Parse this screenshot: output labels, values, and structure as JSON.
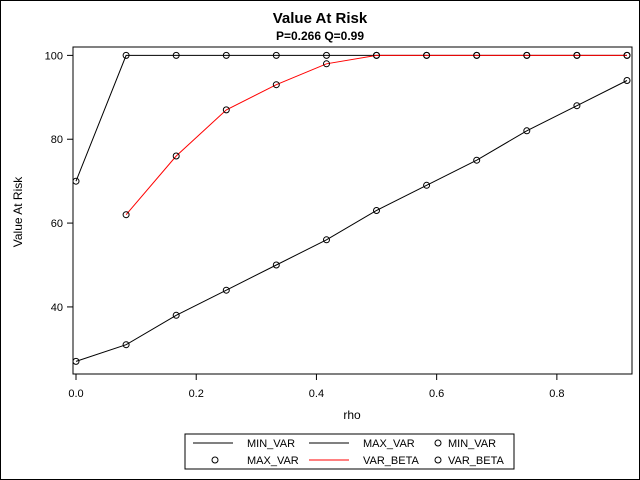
{
  "chart_data": {
    "type": "line",
    "title": "Value At Risk",
    "subtitle": "P=0.266 Q=0.99",
    "xlabel": "rho",
    "ylabel": "Value At Risk",
    "x_ticks": [
      "0.0",
      "0.2",
      "0.4",
      "0.6",
      "0.8"
    ],
    "x_tick_values": [
      0.0,
      0.2,
      0.4,
      0.6,
      0.8
    ],
    "y_ticks": [
      "40",
      "60",
      "80",
      "100"
    ],
    "y_tick_values": [
      40,
      60,
      80,
      100
    ],
    "xlim": [
      -0.005,
      0.925
    ],
    "ylim": [
      24,
      102
    ],
    "grid": false,
    "legend_position": "bottom",
    "series": [
      {
        "name": "MIN_VAR",
        "color": "#000000",
        "line": true,
        "markers": true,
        "x": [
          0.0,
          0.0833,
          0.1667,
          0.25,
          0.3333,
          0.4167,
          0.5,
          0.5833,
          0.6667,
          0.75,
          0.8333,
          0.9167
        ],
        "y": [
          27,
          31,
          38,
          44,
          50,
          56,
          63,
          69,
          75,
          82,
          88,
          94
        ]
      },
      {
        "name": "MAX_VAR",
        "color": "#000000",
        "line": true,
        "markers": true,
        "x": [
          0.0,
          0.0833,
          0.1667,
          0.25,
          0.3333,
          0.4167,
          0.5,
          0.5833,
          0.6667,
          0.75,
          0.8333,
          0.9167
        ],
        "y": [
          70,
          100,
          100,
          100,
          100,
          100,
          100,
          100,
          100,
          100,
          100,
          100
        ]
      },
      {
        "name": "VAR_BETA",
        "color": "#ff0000",
        "line": true,
        "markers": true,
        "x": [
          0.0833,
          0.1667,
          0.25,
          0.3333,
          0.4167,
          0.5,
          0.5833,
          0.6667,
          0.75,
          0.8333,
          0.9167
        ],
        "y": [
          62,
          76,
          87,
          93,
          98,
          100,
          100,
          100,
          100,
          100,
          100
        ]
      }
    ],
    "legend": {
      "rows": [
        [
          {
            "kind": "line",
            "color": "#000000",
            "label": "MIN_VAR"
          },
          {
            "kind": "line",
            "color": "#000000",
            "label": "MAX_VAR"
          },
          {
            "kind": "marker",
            "color": "#000000",
            "label": "MIN_VAR"
          }
        ],
        [
          {
            "kind": "marker",
            "color": "#000000",
            "label": "MAX_VAR"
          },
          {
            "kind": "line",
            "color": "#ff0000",
            "label": "VAR_BETA"
          },
          {
            "kind": "marker",
            "color": "#000000",
            "label": "VAR_BETA"
          }
        ]
      ]
    }
  }
}
